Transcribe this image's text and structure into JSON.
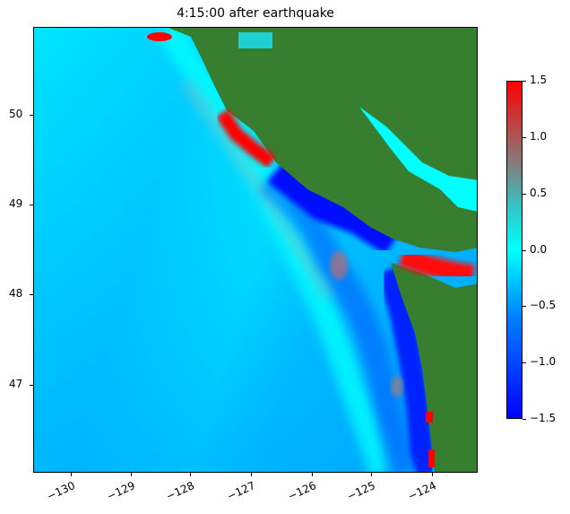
{
  "chart_data": {
    "type": "heatmap",
    "title": "4:15:00 after earthquake",
    "xlabel": "",
    "ylabel": "",
    "xlim": [
      -130.63,
      -123.24
    ],
    "ylim": [
      45.99,
      50.98
    ],
    "xticks": [
      -130,
      -129,
      -128,
      -127,
      -126,
      -125,
      -124
    ],
    "xtick_labels": [
      "−130",
      "−129",
      "−128",
      "−127",
      "−126",
      "−125",
      "−124"
    ],
    "yticks": [
      47,
      48,
      49,
      50
    ],
    "ytick_labels": [
      "47",
      "48",
      "49",
      "50"
    ],
    "colorbar": {
      "range": [
        -1.5,
        1.5
      ],
      "ticks": [
        -1.5,
        -1.0,
        -0.5,
        0.0,
        0.5,
        1.0,
        1.5
      ],
      "tick_labels": [
        "−1.5",
        "−1.0",
        "−0.5",
        "0.0",
        "0.5",
        "1.0",
        "1.5"
      ],
      "colors": [
        "#0000ff",
        "#00ffff",
        "#808080",
        "#ff0000"
      ]
    },
    "land_color": "#377e30",
    "grid": false
  }
}
